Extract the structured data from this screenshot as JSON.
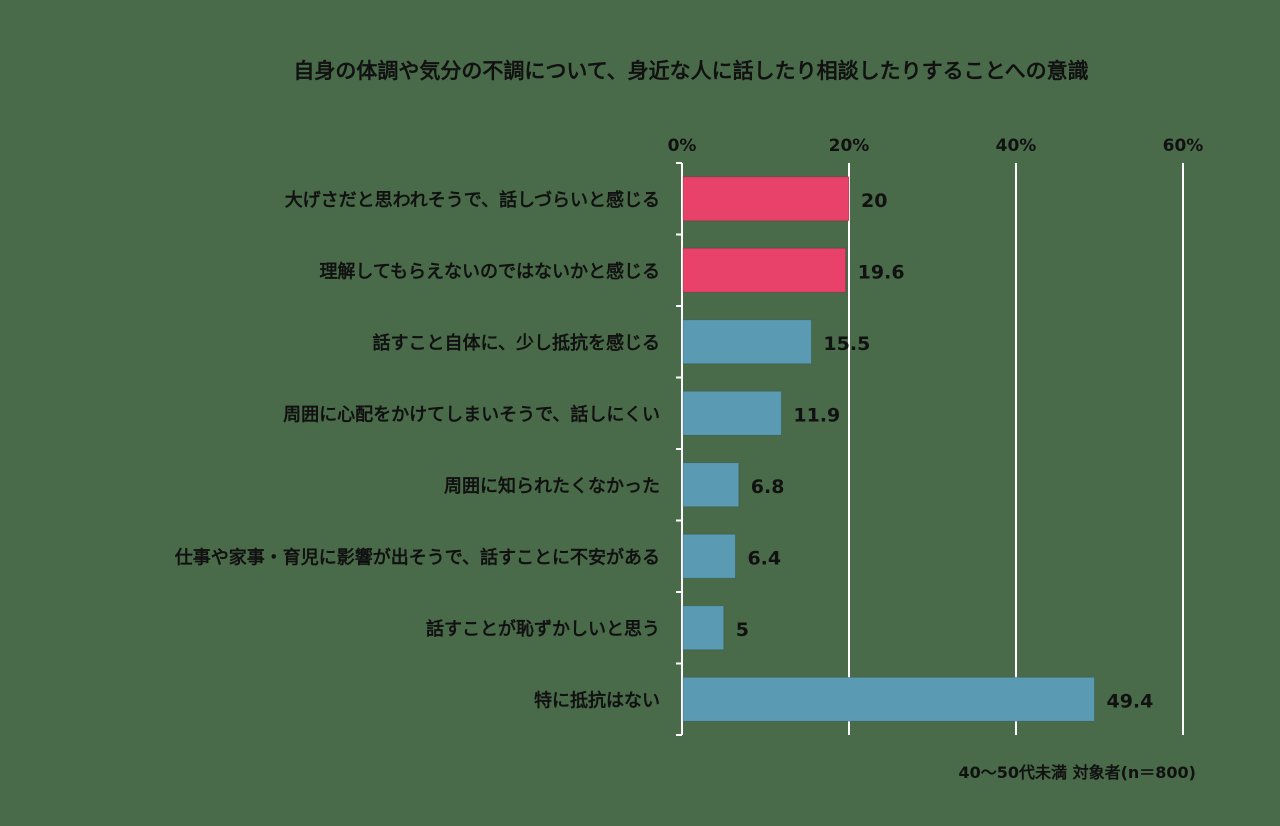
{
  "chart_data": {
    "type": "bar",
    "orientation": "horizontal",
    "title": "自身の体調や気分の不調について、身近な人に話したり相談したりすることへの意識",
    "categories": [
      "大げさだと思われそうで、話しづらいと感じる",
      "理解してもらえないのではないかと感じる",
      "話すこと自体に、少し抵抗を感じる",
      "周囲に心配をかけてしまいそうで、話しにくい",
      "周囲に知られたくなかった",
      "仕事や家事・育児に影響が出そうで、話すことに不安がある",
      "話すことが恥ずかしいと思う",
      "特に抵抗はない"
    ],
    "values": [
      20,
      19.6,
      15.5,
      11.9,
      6.8,
      6.4,
      5,
      49.4
    ],
    "value_labels": [
      "20",
      "19.6",
      "15.5",
      "11.9",
      "6.8",
      "6.4",
      "5",
      "49.4"
    ],
    "highlighted": [
      true,
      true,
      false,
      false,
      false,
      false,
      false,
      false
    ],
    "xlim": [
      0,
      60
    ],
    "xticks": [
      0,
      20,
      40,
      60
    ],
    "xtick_labels": [
      "0%",
      "20%",
      "40%",
      "60%"
    ],
    "xtick_position": "top",
    "grid": true,
    "legend": "none",
    "note": "40～50代未満 対象者(n＝800)",
    "colors": {
      "highlight": "#e8416a",
      "bar": "#5b9ab3",
      "background": "#4a6b4a",
      "grid": "#ffffff",
      "text": "#111111"
    }
  }
}
